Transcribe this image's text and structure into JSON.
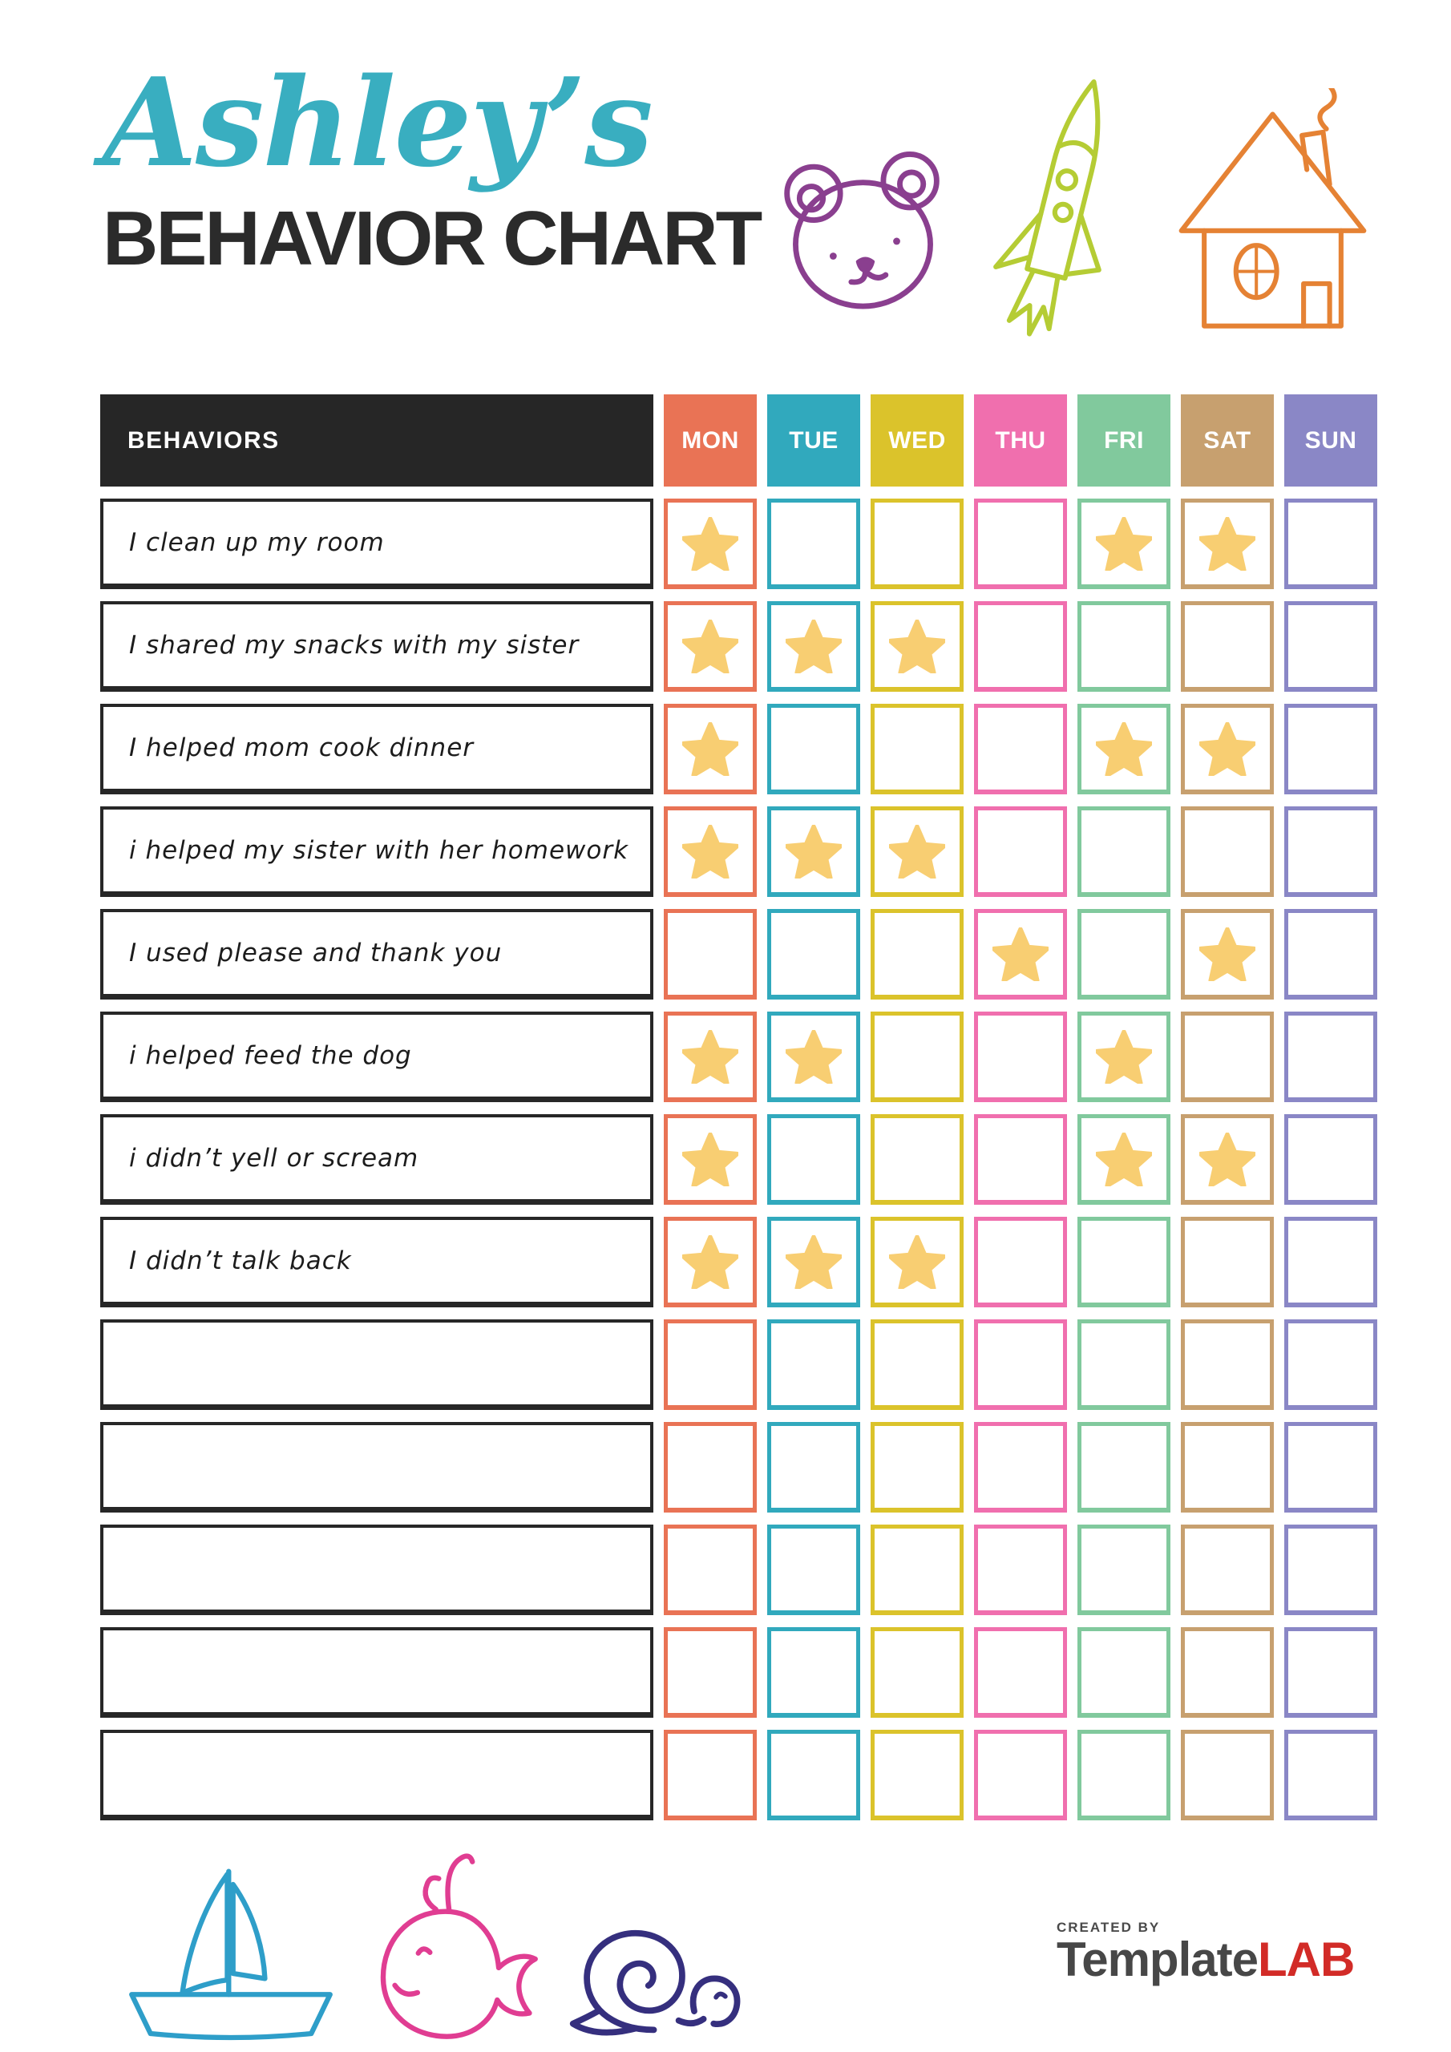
{
  "header": {
    "name": "Ashley’s",
    "title": "BEHAVIOR CHART",
    "top_decorations": [
      "bear-doodle",
      "rocket-doodle",
      "house-doodle"
    ],
    "accent_color": "#39AEC0"
  },
  "table": {
    "behaviors_header": "BEHAVIORS",
    "header_bg": "#262626",
    "star_color": "#F8CE72",
    "days": [
      {
        "label": "MON",
        "color": "#E97355"
      },
      {
        "label": "TUE",
        "color": "#31A9BD"
      },
      {
        "label": "WED",
        "color": "#DBC32B"
      },
      {
        "label": "THU",
        "color": "#F06FAE"
      },
      {
        "label": "FRI",
        "color": "#81C99D"
      },
      {
        "label": "SAT",
        "color": "#C7A06F"
      },
      {
        "label": "SUN",
        "color": "#8A87C6"
      }
    ],
    "rows": [
      {
        "label": "I clean up my room",
        "stars": [
          "MON",
          "FRI",
          "SAT"
        ]
      },
      {
        "label": "I shared my snacks with my sister",
        "stars": [
          "MON",
          "TUE",
          "WED"
        ]
      },
      {
        "label": "I helped mom cook dinner",
        "stars": [
          "MON",
          "FRI",
          "SAT"
        ]
      },
      {
        "label": "i helped my sister with her homework",
        "stars": [
          "MON",
          "TUE",
          "WED"
        ]
      },
      {
        "label": "I used please and thank you",
        "stars": [
          "THU",
          "SAT"
        ]
      },
      {
        "label": "i helped feed the dog",
        "stars": [
          "MON",
          "TUE",
          "FRI"
        ]
      },
      {
        "label": "i didn’t yell or scream",
        "stars": [
          "MON",
          "FRI",
          "SAT"
        ]
      },
      {
        "label": "I didn’t talk back",
        "stars": [
          "MON",
          "TUE",
          "WED"
        ]
      },
      {
        "label": "",
        "stars": []
      },
      {
        "label": "",
        "stars": []
      },
      {
        "label": "",
        "stars": []
      },
      {
        "label": "",
        "stars": []
      },
      {
        "label": "",
        "stars": []
      }
    ]
  },
  "footer": {
    "bottom_decorations": [
      "sailboat-doodle",
      "whale-doodle",
      "snail-doodle"
    ],
    "credit": "CREATED BY",
    "brand_primary": "Template",
    "brand_secondary": "LAB",
    "brand_secondary_color": "#D22B27"
  },
  "doodle_colors": {
    "bear": "#8A3F8F",
    "rocket": "#B5CC34",
    "house": "#E58234",
    "boat": "#2E9EC9",
    "whale": "#E03D92",
    "snail": "#352F7E"
  }
}
